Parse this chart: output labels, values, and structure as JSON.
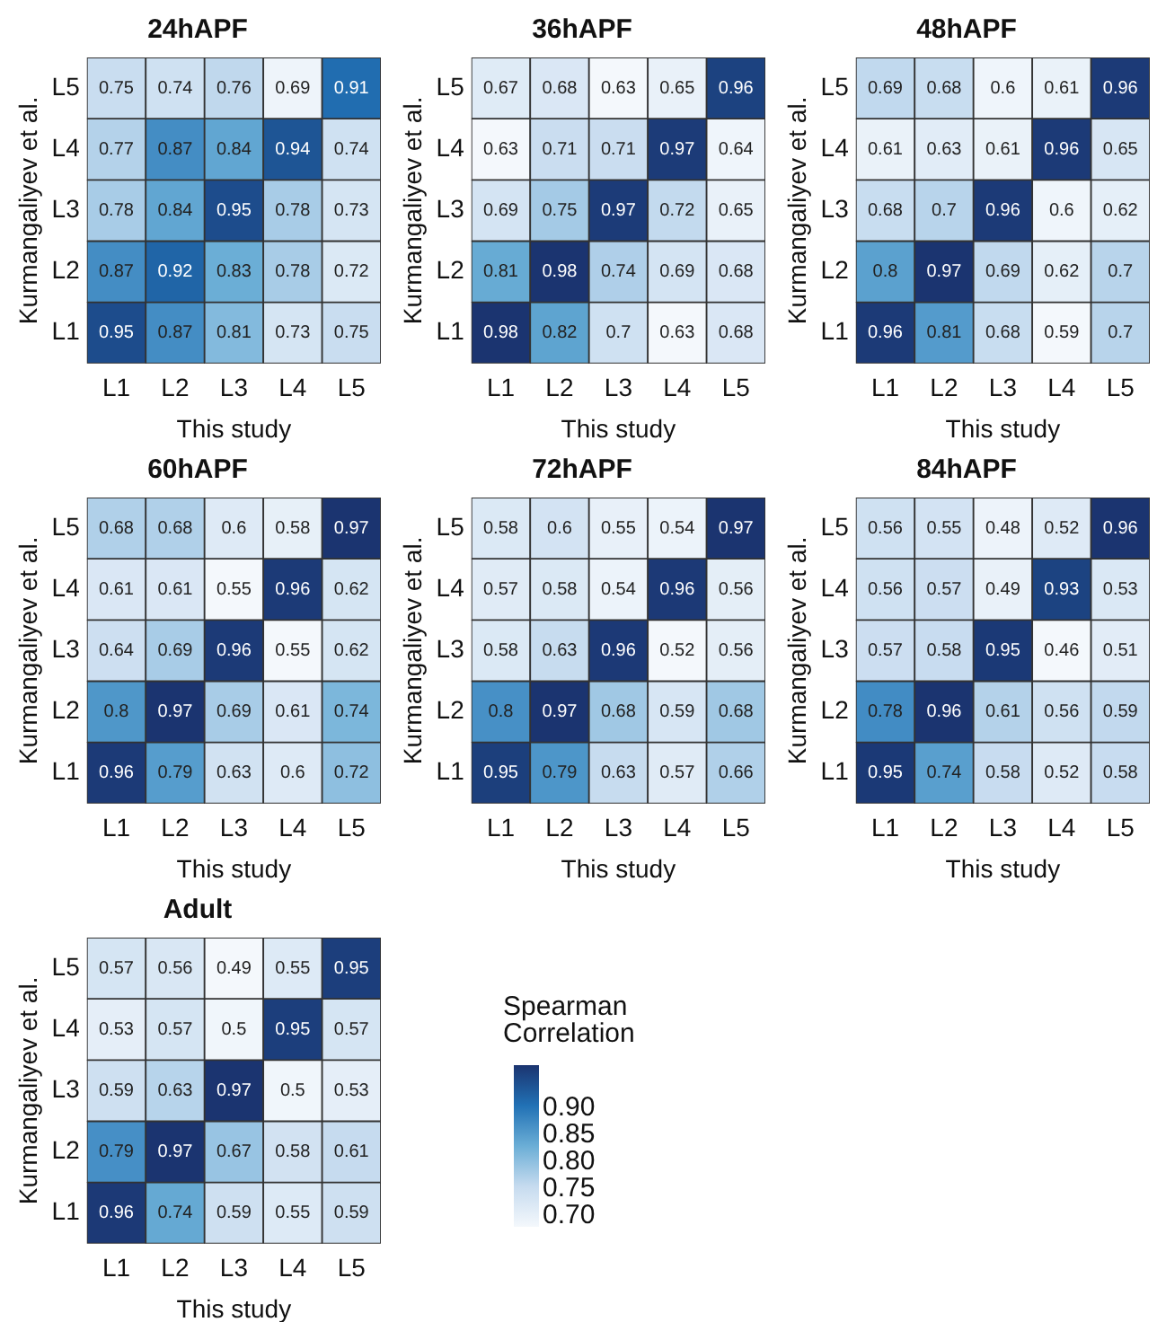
{
  "chart_data": [
    {
      "type": "heatmap",
      "title": "24hAPF",
      "xlabel": "This study",
      "ylabel": "Kurmangaliyev et al.",
      "clabel": "Spearman Correlation",
      "clim": [
        0.68,
        0.98
      ],
      "cticks": [
        {
          "value": 0.9,
          "label": "0.90"
        },
        {
          "value": 0.85,
          "label": "0.85"
        },
        {
          "value": 0.8,
          "label": "0.80"
        },
        {
          "value": 0.75,
          "label": "0.75"
        },
        {
          "value": 0.7,
          "label": "0.70"
        }
      ],
      "categories": [
        "L1",
        "L2",
        "L3",
        "L4",
        "L5"
      ],
      "y_categories": [
        "L5",
        "L4",
        "L3",
        "L2",
        "L1"
      ],
      "data_labels": true,
      "cells": [
        [
          0.75,
          0.74,
          0.76,
          0.69,
          0.91
        ],
        [
          0.77,
          0.87,
          0.84,
          0.94,
          0.74
        ],
        [
          0.78,
          0.84,
          0.95,
          0.78,
          0.73
        ],
        [
          0.87,
          0.92,
          0.83,
          0.78,
          0.72
        ],
        [
          0.95,
          0.87,
          0.81,
          0.73,
          0.75
        ]
      ]
    },
    {
      "type": "heatmap",
      "title": "36hAPF",
      "xlabel": "This study",
      "ylabel": "Kurmangaliyev et al.",
      "categories": [
        "L1",
        "L2",
        "L3",
        "L4",
        "L5"
      ],
      "y_categories": [
        "L5",
        "L4",
        "L3",
        "L2",
        "L1"
      ],
      "data_labels": true,
      "cells": [
        [
          0.67,
          0.68,
          0.63,
          0.65,
          0.96
        ],
        [
          0.63,
          0.71,
          0.71,
          0.97,
          0.64
        ],
        [
          0.69,
          0.75,
          0.97,
          0.72,
          0.65
        ],
        [
          0.81,
          0.98,
          0.74,
          0.69,
          0.68
        ],
        [
          0.98,
          0.82,
          0.7,
          0.63,
          0.68
        ]
      ]
    },
    {
      "type": "heatmap",
      "title": "48hAPF",
      "xlabel": "This study",
      "ylabel": "Kurmangaliyev et al.",
      "categories": [
        "L1",
        "L2",
        "L3",
        "L4",
        "L5"
      ],
      "y_categories": [
        "L5",
        "L4",
        "L3",
        "L2",
        "L1"
      ],
      "data_labels": true,
      "cells": [
        [
          0.69,
          0.68,
          0.6,
          0.61,
          0.96
        ],
        [
          0.61,
          0.63,
          0.61,
          0.96,
          0.65
        ],
        [
          0.68,
          0.7,
          0.96,
          0.6,
          0.62
        ],
        [
          0.8,
          0.97,
          0.69,
          0.62,
          0.7
        ],
        [
          0.96,
          0.81,
          0.68,
          0.59,
          0.7
        ]
      ]
    },
    {
      "type": "heatmap",
      "title": "60hAPF",
      "xlabel": "This study",
      "ylabel": "Kurmangaliyev et al.",
      "categories": [
        "L1",
        "L2",
        "L3",
        "L4",
        "L5"
      ],
      "y_categories": [
        "L5",
        "L4",
        "L3",
        "L2",
        "L1"
      ],
      "data_labels": true,
      "cells": [
        [
          0.68,
          0.68,
          0.6,
          0.58,
          0.97
        ],
        [
          0.61,
          0.61,
          0.55,
          0.96,
          0.62
        ],
        [
          0.64,
          0.69,
          0.96,
          0.55,
          0.62
        ],
        [
          0.8,
          0.97,
          0.69,
          0.61,
          0.74
        ],
        [
          0.96,
          0.79,
          0.63,
          0.6,
          0.72
        ]
      ]
    },
    {
      "type": "heatmap",
      "title": "72hAPF",
      "xlabel": "This study",
      "ylabel": "Kurmangaliyev et al.",
      "categories": [
        "L1",
        "L2",
        "L3",
        "L4",
        "L5"
      ],
      "y_categories": [
        "L5",
        "L4",
        "L3",
        "L2",
        "L1"
      ],
      "data_labels": true,
      "cells": [
        [
          0.58,
          0.6,
          0.55,
          0.54,
          0.97
        ],
        [
          0.57,
          0.58,
          0.54,
          0.96,
          0.56
        ],
        [
          0.58,
          0.63,
          0.96,
          0.52,
          0.56
        ],
        [
          0.8,
          0.97,
          0.68,
          0.59,
          0.68
        ],
        [
          0.95,
          0.79,
          0.63,
          0.57,
          0.66
        ]
      ]
    },
    {
      "type": "heatmap",
      "title": "84hAPF",
      "xlabel": "This study",
      "ylabel": "Kurmangaliyev et al.",
      "categories": [
        "L1",
        "L2",
        "L3",
        "L4",
        "L5"
      ],
      "y_categories": [
        "L5",
        "L4",
        "L3",
        "L2",
        "L1"
      ],
      "data_labels": true,
      "cells": [
        [
          0.56,
          0.55,
          0.48,
          0.52,
          0.96
        ],
        [
          0.56,
          0.57,
          0.49,
          0.93,
          0.53
        ],
        [
          0.57,
          0.58,
          0.95,
          0.46,
          0.51
        ],
        [
          0.78,
          0.96,
          0.61,
          0.56,
          0.59
        ],
        [
          0.95,
          0.74,
          0.58,
          0.52,
          0.58
        ]
      ]
    },
    {
      "type": "heatmap",
      "title": "Adult",
      "xlabel": "This study",
      "ylabel": "Kurmangaliyev et al.",
      "categories": [
        "L1",
        "L2",
        "L3",
        "L4",
        "L5"
      ],
      "y_categories": [
        "L5",
        "L4",
        "L3",
        "L2",
        "L1"
      ],
      "data_labels": true,
      "cells": [
        [
          0.57,
          0.56,
          0.49,
          0.55,
          0.95
        ],
        [
          0.53,
          0.57,
          0.5,
          0.95,
          0.57
        ],
        [
          0.59,
          0.63,
          0.97,
          0.5,
          0.53
        ],
        [
          0.79,
          0.97,
          0.67,
          0.58,
          0.61
        ],
        [
          0.96,
          0.74,
          0.59,
          0.55,
          0.59
        ]
      ]
    }
  ]
}
